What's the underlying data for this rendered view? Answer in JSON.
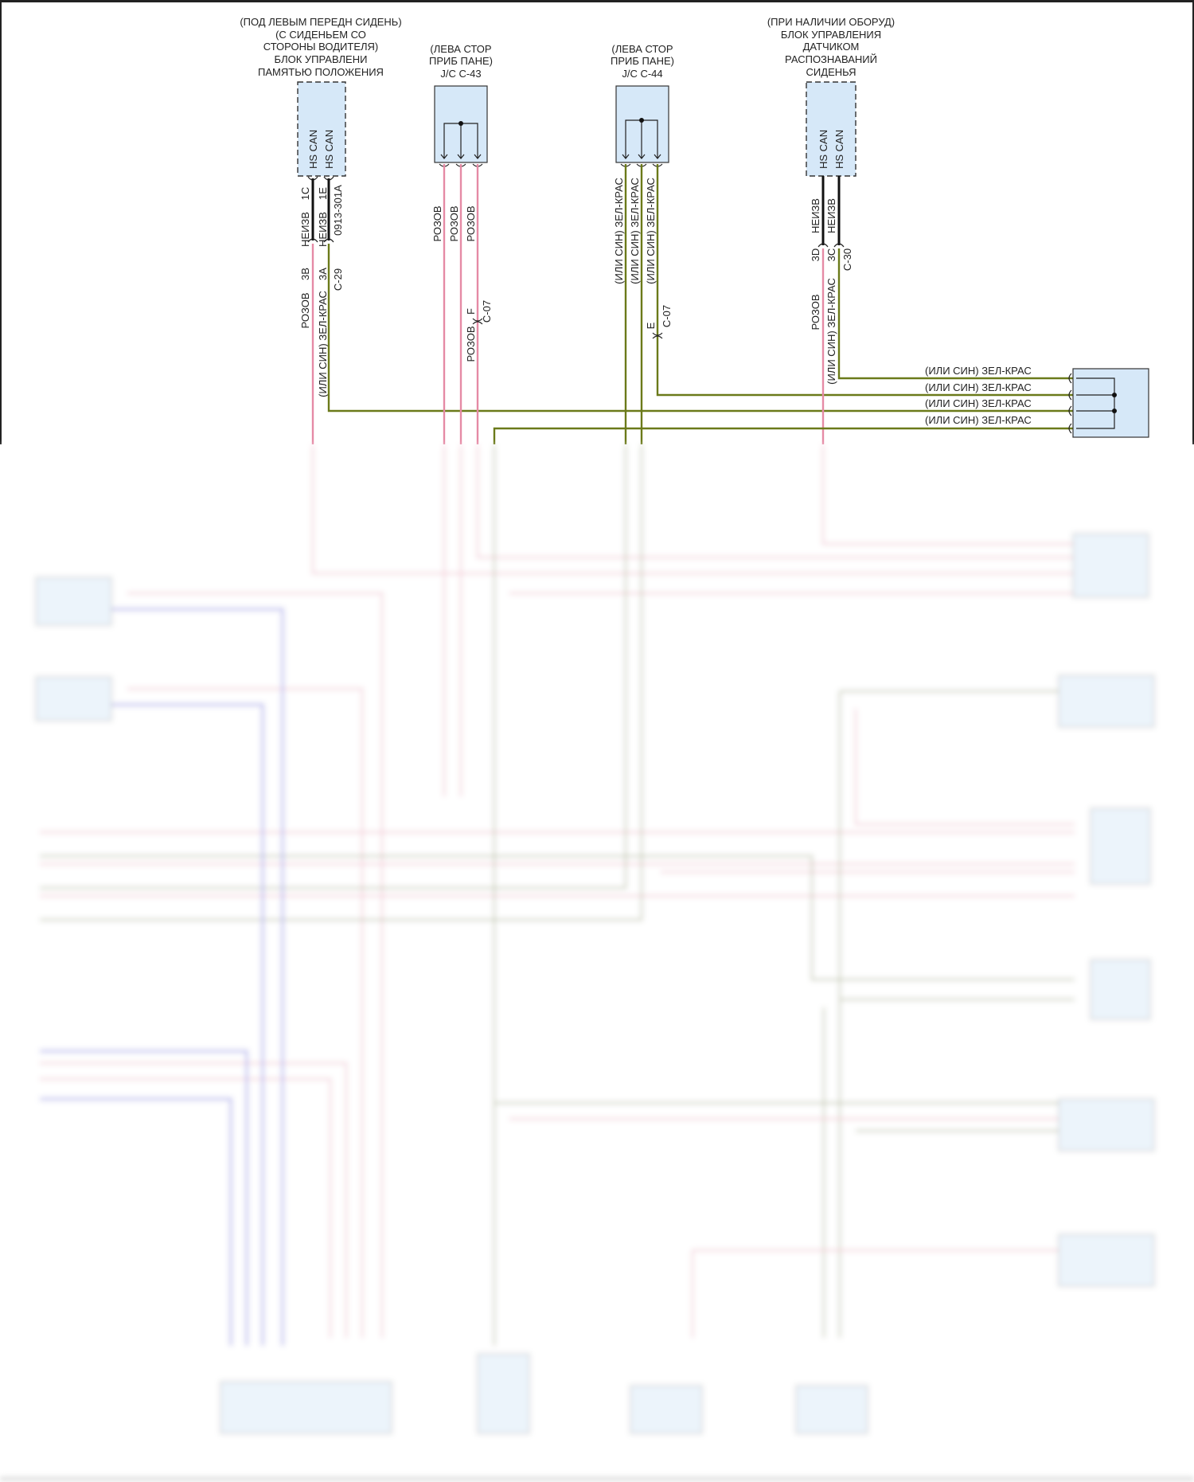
{
  "colors": {
    "pink_wire": "#e58aa5",
    "green_wire": "#6b7a1a",
    "can_wire": "#111111",
    "blue_wire": "#6a6ae0",
    "module_fill": "#d6e8f8"
  },
  "module1": {
    "title": [
      "(ПОД ЛЕВЫМ ПЕРЕДН СИДЕНЬ)",
      "(С СИДЕНЬЕМ СО",
      "СТОРОНЫ ВОДИТЕЛЯ)",
      "БЛОК УПРАВЛЕНИ",
      "ПАМЯТЬЮ ПОЛОЖЕНИЯ"
    ],
    "pins": [
      "HS CAN",
      "HS CAN"
    ],
    "pin_ids": [
      "1C",
      "1E"
    ],
    "connector": "0913-301A",
    "wire_colors_top": [
      "НЕИЗВ",
      "НЕИЗВ"
    ],
    "splice_pins": [
      "3B",
      "3A"
    ],
    "splice_connector": "C-29",
    "wire_colors_bottom": [
      "РОЗОВ",
      "(ИЛИ СИН) ЗЕЛ-КРАС"
    ]
  },
  "jc43": {
    "title": [
      "(ЛЕВА СТОР",
      "ПРИБ ПАНЕ)",
      "J/C C-43"
    ],
    "wire_colors": [
      "РОЗОВ",
      "РОЗОВ",
      "РОЗОВ"
    ],
    "inline_pin": "F",
    "inline_connector": "C-07",
    "wire_color_after": "РОЗОВ"
  },
  "jc44": {
    "title": [
      "(ЛЕВА СТОР",
      "ПРИБ ПАНЕ)",
      "J/C C-44"
    ],
    "wire_colors": [
      "(ИЛИ СИН) ЗЕЛ-КРАС",
      "(ИЛИ СИН) ЗЕЛ-КРАС",
      "(ИЛИ СИН) ЗЕЛ-КРАС"
    ],
    "inline_pin": "E",
    "inline_connector": "C-07"
  },
  "module2": {
    "title": [
      "(ПРИ НАЛИЧИИ ОБОРУД)",
      "БЛОК УПРАВЛЕНИЯ",
      "ДАТЧИКОМ",
      "РАСПОЗНАВАНИЙ",
      "СИДЕНЬЯ"
    ],
    "pins": [
      "HS CAN",
      "HS CAN"
    ],
    "wire_colors_top": [
      "НЕИЗВ",
      "НЕИЗВ"
    ],
    "splice_pins": [
      "3D",
      "3C"
    ],
    "splice_connector": "C-30",
    "wire_colors_bottom": [
      "РОЗОВ",
      "(ИЛИ СИН) ЗЕЛ-КРАС"
    ]
  },
  "right_splice": {
    "wire_labels": [
      "(ИЛИ СИН) ЗЕЛ-КРАС",
      "(ИЛИ СИН) ЗЕЛ-КРАС",
      "(ИЛИ СИН) ЗЕЛ-КРАС",
      "(ИЛИ СИН) ЗЕЛ-КРАС"
    ]
  }
}
